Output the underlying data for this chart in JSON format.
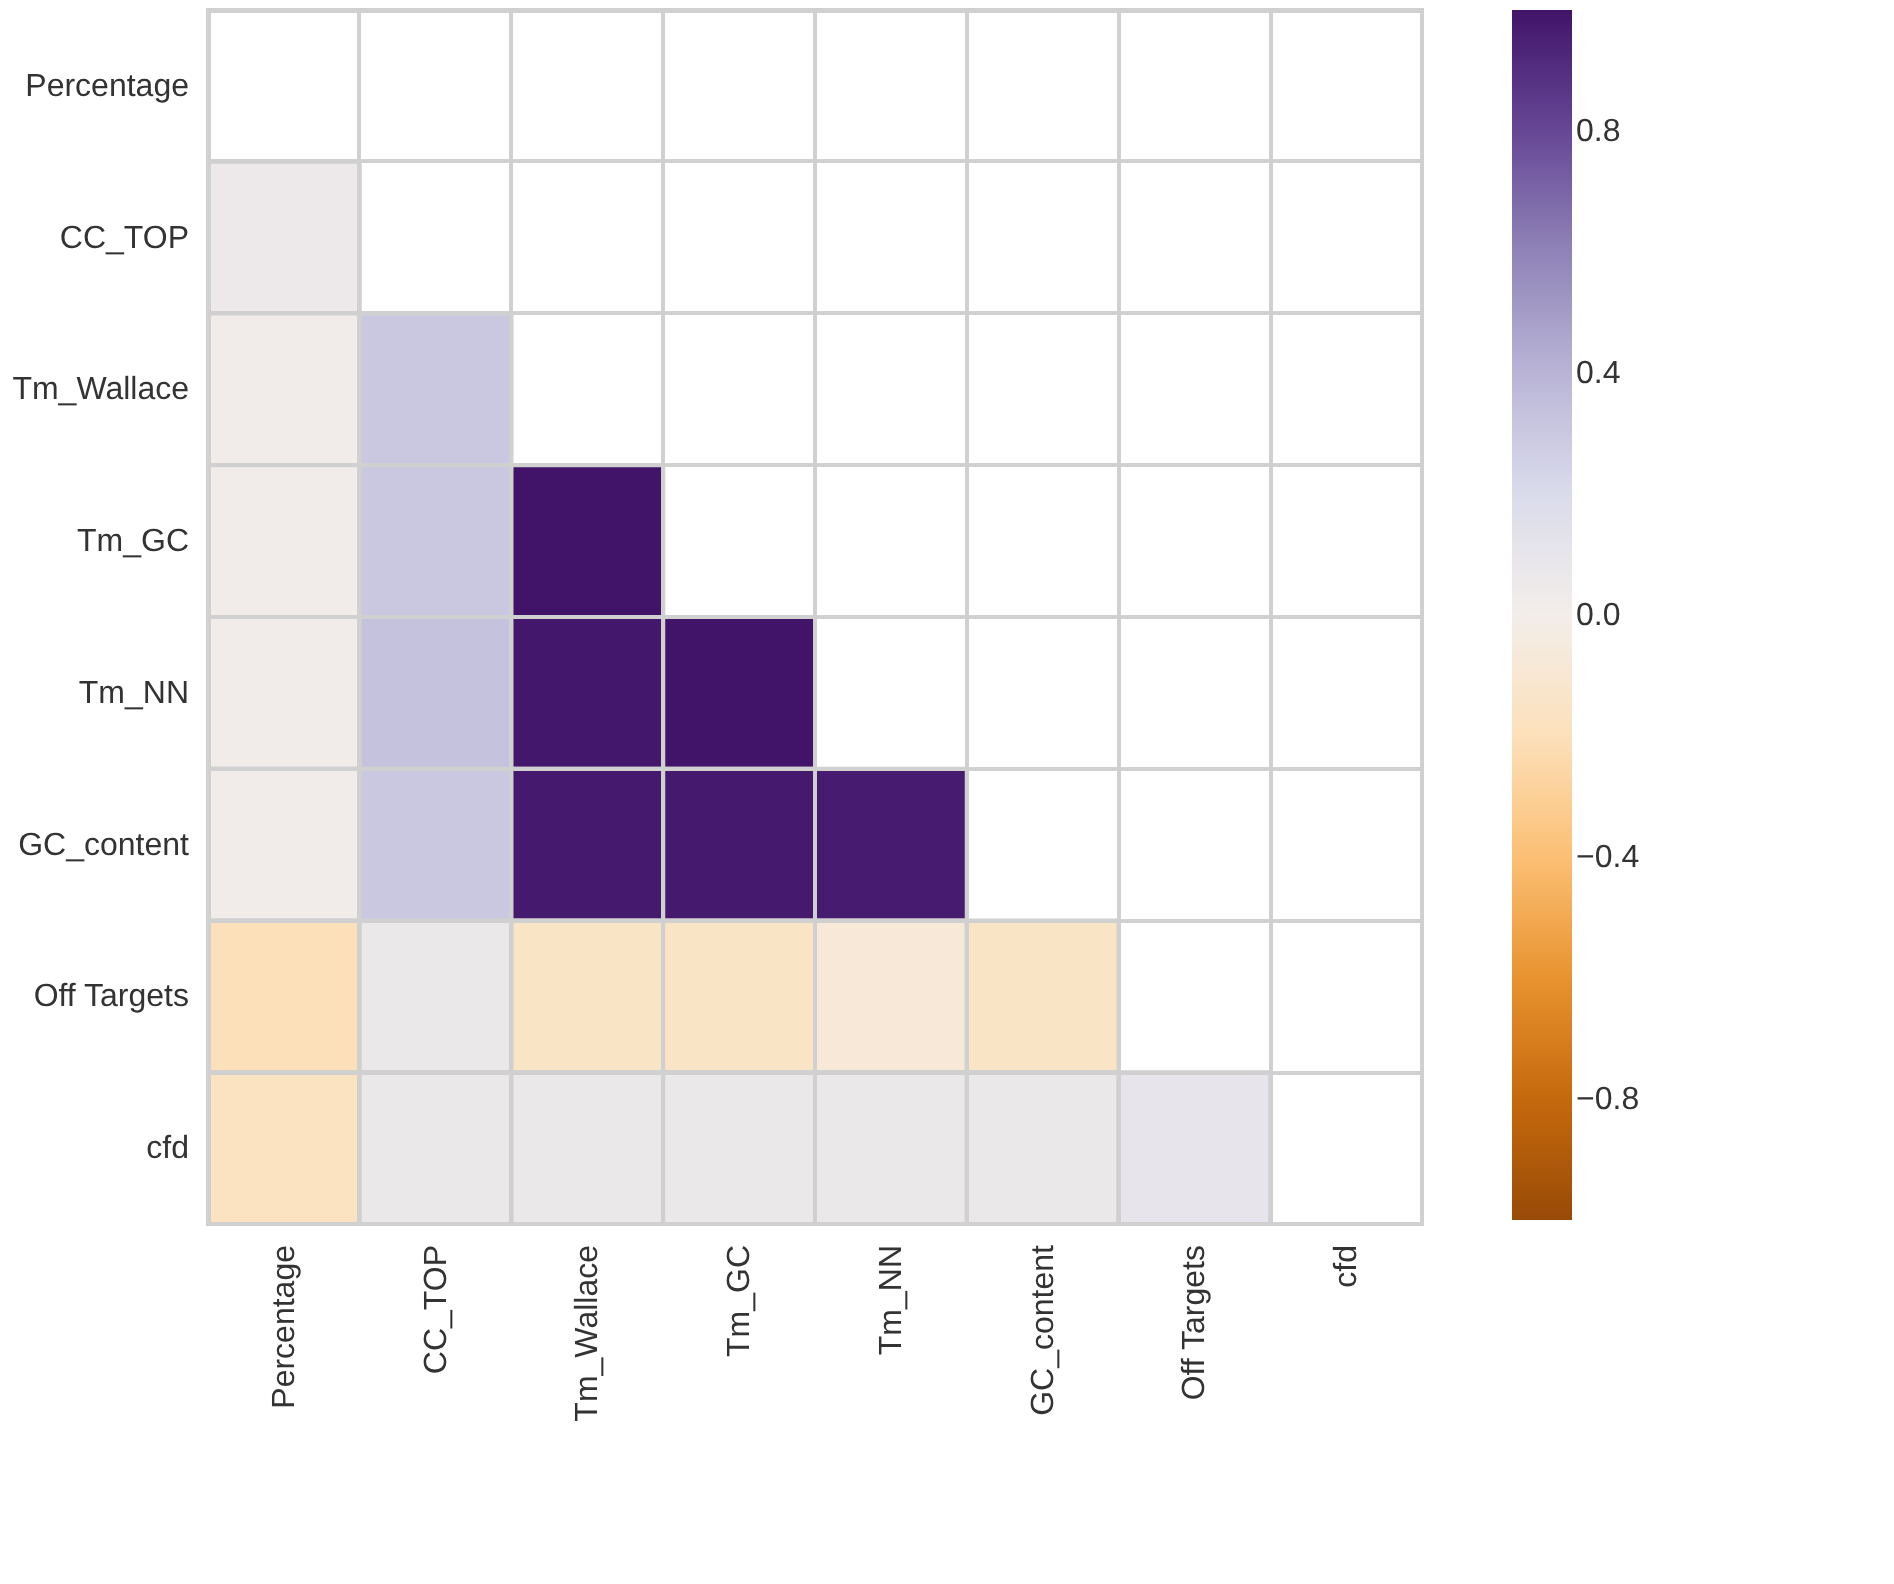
{
  "chart_data": {
    "type": "heatmap",
    "categories": [
      "Percentage",
      "CC_TOP",
      "Tm_Wallace",
      "Tm_GC",
      "Tm_NN",
      "GC_content",
      "Off Targets",
      "cfd"
    ],
    "y_categories": [
      "Percentage",
      "CC_TOP",
      "Tm_Wallace",
      "Tm_GC",
      "Tm_NN",
      "GC_content",
      "Off Targets",
      "cfd"
    ],
    "cells": [
      [
        null,
        null,
        null,
        null,
        null,
        null,
        null,
        null
      ],
      [
        0.05,
        null,
        null,
        null,
        null,
        null,
        null,
        null
      ],
      [
        0.02,
        0.3,
        null,
        null,
        null,
        null,
        null,
        null
      ],
      [
        0.02,
        0.3,
        1.0,
        null,
        null,
        null,
        null,
        null
      ],
      [
        0.02,
        0.33,
        0.99,
        1.0,
        null,
        null,
        null,
        null
      ],
      [
        0.02,
        0.3,
        0.98,
        0.98,
        0.97,
        null,
        null,
        null
      ],
      [
        -0.2,
        0.06,
        -0.15,
        -0.15,
        -0.08,
        -0.15,
        null,
        null
      ],
      [
        -0.17,
        0.06,
        0.06,
        0.06,
        0.06,
        0.06,
        0.1,
        null
      ]
    ],
    "clim": [
      -1,
      1
    ],
    "cticks": [
      {
        "value": -0.8,
        "label": "−0.8"
      },
      {
        "value": -0.4,
        "label": "−0.4"
      },
      {
        "value": 0,
        "label": "0.0"
      },
      0.4,
      0.8
    ],
    "grid": true
  }
}
